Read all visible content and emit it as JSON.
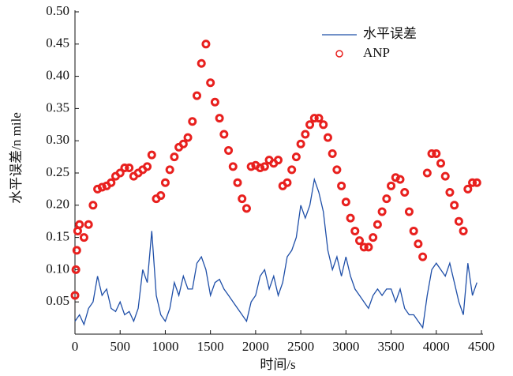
{
  "chart_data": {
    "type": "line",
    "xlabel": "时间/s",
    "ylabel": "水平误差/n mile",
    "xlim": [
      0,
      4500
    ],
    "xticks": [
      0,
      500,
      1000,
      1500,
      2000,
      2500,
      3000,
      3500,
      4000,
      4500
    ],
    "ylim": [
      0,
      0.5
    ],
    "yticks": [
      0.05,
      {
        "value": 0.1,
        "label": "0.10"
      },
      0.15,
      {
        "value": 0.2,
        "label": "0.20"
      },
      0.25,
      {
        "value": 0.3,
        "label": "0.30"
      },
      0.35,
      {
        "value": 0.4,
        "label": "0.40"
      },
      0.45,
      {
        "value": 0.5,
        "label": "0.50"
      }
    ],
    "legend": "upper right",
    "series": [
      {
        "name": "水平误差",
        "type": "line",
        "color": "#1f4fa8",
        "x": [
          0,
          50,
          100,
          150,
          200,
          250,
          300,
          350,
          400,
          450,
          500,
          550,
          600,
          650,
          700,
          750,
          800,
          850,
          900,
          950,
          1000,
          1050,
          1100,
          1150,
          1200,
          1250,
          1300,
          1350,
          1400,
          1450,
          1500,
          1550,
          1600,
          1650,
          1700,
          1750,
          1800,
          1850,
          1900,
          1950,
          2000,
          2050,
          2100,
          2150,
          2200,
          2250,
          2300,
          2350,
          2400,
          2450,
          2500,
          2550,
          2600,
          2650,
          2700,
          2750,
          2800,
          2850,
          2900,
          2950,
          3000,
          3050,
          3100,
          3150,
          3200,
          3250,
          3300,
          3350,
          3400,
          3450,
          3500,
          3550,
          3600,
          3650,
          3700,
          3750,
          3800,
          3850,
          3900,
          3950,
          4000,
          4050,
          4100,
          4150,
          4200,
          4250,
          4300,
          4350,
          4400,
          4450
        ],
        "values": [
          0.02,
          0.03,
          0.015,
          0.04,
          0.05,
          0.09,
          0.06,
          0.07,
          0.04,
          0.035,
          0.05,
          0.03,
          0.035,
          0.02,
          0.04,
          0.1,
          0.08,
          0.16,
          0.06,
          0.03,
          0.02,
          0.04,
          0.08,
          0.06,
          0.09,
          0.07,
          0.07,
          0.11,
          0.12,
          0.1,
          0.06,
          0.08,
          0.085,
          0.07,
          0.06,
          0.05,
          0.04,
          0.03,
          0.02,
          0.05,
          0.06,
          0.09,
          0.1,
          0.07,
          0.09,
          0.06,
          0.08,
          0.12,
          0.13,
          0.15,
          0.2,
          0.18,
          0.2,
          0.24,
          0.22,
          0.19,
          0.13,
          0.1,
          0.12,
          0.09,
          0.12,
          0.09,
          0.07,
          0.06,
          0.05,
          0.04,
          0.06,
          0.07,
          0.06,
          0.07,
          0.07,
          0.05,
          0.07,
          0.04,
          0.03,
          0.03,
          0.02,
          0.01,
          0.06,
          0.1,
          0.11,
          0.1,
          0.09,
          0.11,
          0.08,
          0.05,
          0.03,
          0.11,
          0.06,
          0.08
        ]
      },
      {
        "name": "ANP",
        "type": "scatter",
        "color": "#e8201e",
        "x": [
          0,
          10,
          20,
          30,
          50,
          100,
          150,
          200,
          250,
          300,
          350,
          400,
          450,
          500,
          550,
          600,
          650,
          700,
          750,
          800,
          850,
          900,
          950,
          1000,
          1050,
          1100,
          1150,
          1200,
          1250,
          1300,
          1350,
          1400,
          1450,
          1500,
          1550,
          1600,
          1650,
          1700,
          1750,
          1800,
          1850,
          1900,
          1950,
          2000,
          2050,
          2100,
          2150,
          2200,
          2250,
          2300,
          2350,
          2400,
          2450,
          2500,
          2550,
          2600,
          2650,
          2700,
          2750,
          2800,
          2850,
          2900,
          2950,
          3000,
          3050,
          3100,
          3150,
          3200,
          3250,
          3300,
          3350,
          3400,
          3450,
          3500,
          3550,
          3600,
          3650,
          3700,
          3750,
          3800,
          3850,
          3900,
          3950,
          4000,
          4050,
          4100,
          4150,
          4200,
          4250,
          4300,
          4350,
          4400,
          4450
        ],
        "values": [
          0.06,
          0.1,
          0.13,
          0.16,
          0.17,
          0.15,
          0.17,
          0.2,
          0.225,
          0.228,
          0.23,
          0.235,
          0.245,
          0.25,
          0.258,
          0.258,
          0.245,
          0.25,
          0.255,
          0.26,
          0.278,
          0.21,
          0.215,
          0.235,
          0.255,
          0.275,
          0.29,
          0.295,
          0.305,
          0.33,
          0.37,
          0.42,
          0.45,
          0.39,
          0.36,
          0.335,
          0.31,
          0.285,
          0.26,
          0.235,
          0.21,
          0.195,
          0.26,
          0.262,
          0.258,
          0.26,
          0.27,
          0.265,
          0.27,
          0.23,
          0.235,
          0.255,
          0.275,
          0.295,
          0.31,
          0.325,
          0.335,
          0.335,
          0.325,
          0.305,
          0.28,
          0.255,
          0.23,
          0.205,
          0.18,
          0.16,
          0.145,
          0.135,
          0.135,
          0.15,
          0.17,
          0.19,
          0.21,
          0.23,
          0.243,
          0.24,
          0.22,
          0.19,
          0.16,
          0.14,
          0.12,
          0.25,
          0.28,
          0.28,
          0.265,
          0.245,
          0.22,
          0.2,
          0.175,
          0.16,
          0.225,
          0.235,
          0.235
        ]
      }
    ]
  }
}
